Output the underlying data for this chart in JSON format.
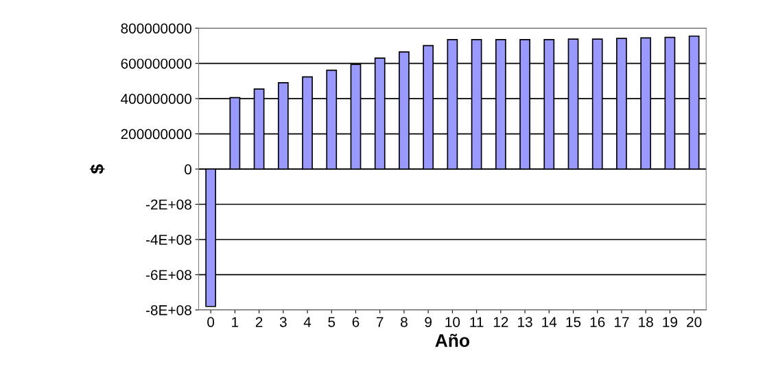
{
  "chart_data": {
    "type": "bar",
    "xlabel": "Año",
    "ylabel": "$",
    "categories": [
      "0",
      "1",
      "2",
      "3",
      "4",
      "5",
      "6",
      "7",
      "8",
      "9",
      "10",
      "11",
      "12",
      "13",
      "14",
      "15",
      "16",
      "17",
      "18",
      "19",
      "20"
    ],
    "values": [
      -780000000,
      406000000,
      454000000,
      490000000,
      523000000,
      561000000,
      594000000,
      630000000,
      665000000,
      701000000,
      735000000,
      735000000,
      735000000,
      735000000,
      735000000,
      738000000,
      738000000,
      742000000,
      745000000,
      748000000,
      755000000
    ],
    "color": "#9999ff",
    "ylim": [
      -800000000,
      800000000
    ],
    "yticks": [
      {
        "value": -800000000,
        "label": "-8E+08"
      },
      {
        "value": -600000000,
        "label": "-6E+08"
      },
      {
        "value": -400000000,
        "label": "-4E+08"
      },
      {
        "value": -200000000,
        "label": "-2E+08"
      },
      0,
      200000000,
      400000000,
      600000000,
      800000000
    ],
    "grid": "y"
  }
}
